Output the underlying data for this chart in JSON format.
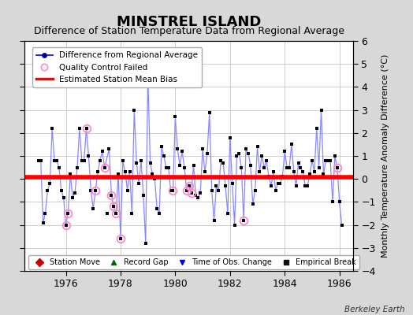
{
  "title": "MINSTREL ISLAND",
  "subtitle": "Difference of Station Temperature Data from Regional Average",
  "ylabel": "Monthly Temperature Anomaly Difference (°C)",
  "xlim": [
    1974.5,
    1986.5
  ],
  "ylim": [
    -4,
    6
  ],
  "yticks": [
    -4,
    -3,
    -2,
    -1,
    0,
    1,
    2,
    3,
    4,
    5,
    6
  ],
  "xticks": [
    1976,
    1978,
    1980,
    1982,
    1984,
    1986
  ],
  "bias_value": 0.08,
  "line_color": "#0000ff",
  "line_color_light": "#8888ff",
  "marker_color": "#000000",
  "qc_color": "#ff88cc",
  "bias_color": "#ff0000",
  "background_color": "#d8d8d8",
  "plot_bg_color": "#ffffff",
  "title_fontsize": 13,
  "subtitle_fontsize": 9,
  "tick_fontsize": 9,
  "ylabel_fontsize": 8,
  "watermark": "Berkeley Earth",
  "data": [
    [
      1975.0,
      0.8
    ],
    [
      1975.083,
      0.8
    ],
    [
      1975.167,
      -1.9
    ],
    [
      1975.25,
      -1.5
    ],
    [
      1975.333,
      -0.5
    ],
    [
      1975.417,
      -0.2
    ],
    [
      1975.5,
      2.2
    ],
    [
      1975.583,
      0.8
    ],
    [
      1975.667,
      0.8
    ],
    [
      1975.75,
      0.5
    ],
    [
      1975.833,
      -0.5
    ],
    [
      1975.917,
      -0.8
    ],
    [
      1976.0,
      -2.0
    ],
    [
      1976.083,
      -1.5
    ],
    [
      1976.167,
      0.2
    ],
    [
      1976.25,
      -0.8
    ],
    [
      1976.333,
      -0.6
    ],
    [
      1976.417,
      0.5
    ],
    [
      1976.5,
      2.2
    ],
    [
      1976.583,
      0.8
    ],
    [
      1976.667,
      0.8
    ],
    [
      1976.75,
      2.2
    ],
    [
      1976.833,
      1.0
    ],
    [
      1976.917,
      -0.5
    ],
    [
      1977.0,
      -1.3
    ],
    [
      1977.083,
      -0.5
    ],
    [
      1977.167,
      0.3
    ],
    [
      1977.25,
      0.8
    ],
    [
      1977.333,
      1.2
    ],
    [
      1977.417,
      0.5
    ],
    [
      1977.583,
      1.3
    ],
    [
      1977.667,
      -0.7
    ],
    [
      1977.75,
      -1.2
    ],
    [
      1977.833,
      -1.5
    ],
    [
      1977.917,
      0.2
    ],
    [
      1978.0,
      -2.6
    ],
    [
      1978.083,
      0.8
    ],
    [
      1978.167,
      0.3
    ],
    [
      1978.25,
      -0.5
    ],
    [
      1978.333,
      0.3
    ],
    [
      1978.417,
      -1.5
    ],
    [
      1978.5,
      3.0
    ],
    [
      1978.583,
      0.7
    ],
    [
      1978.667,
      -0.2
    ],
    [
      1978.75,
      0.8
    ],
    [
      1978.833,
      -0.7
    ],
    [
      1978.917,
      -2.8
    ],
    [
      1979.0,
      4.5
    ],
    [
      1979.083,
      0.7
    ],
    [
      1979.167,
      0.2
    ],
    [
      1979.25,
      0.0
    ],
    [
      1979.333,
      -1.3
    ],
    [
      1979.417,
      -1.5
    ],
    [
      1979.5,
      1.4
    ],
    [
      1979.583,
      1.0
    ],
    [
      1979.667,
      0.5
    ],
    [
      1979.75,
      0.5
    ],
    [
      1979.833,
      -0.5
    ],
    [
      1979.917,
      -0.5
    ],
    [
      1980.0,
      2.7
    ],
    [
      1980.083,
      1.3
    ],
    [
      1980.167,
      0.6
    ],
    [
      1980.25,
      1.2
    ],
    [
      1980.333,
      0.5
    ],
    [
      1980.417,
      -0.5
    ],
    [
      1980.5,
      -0.3
    ],
    [
      1980.583,
      -0.6
    ],
    [
      1980.667,
      0.6
    ],
    [
      1980.75,
      -0.7
    ],
    [
      1980.833,
      -0.8
    ],
    [
      1980.917,
      -0.6
    ],
    [
      1981.0,
      1.3
    ],
    [
      1981.083,
      0.3
    ],
    [
      1981.167,
      1.1
    ],
    [
      1981.25,
      2.9
    ],
    [
      1981.333,
      -0.5
    ],
    [
      1981.417,
      -1.8
    ],
    [
      1981.5,
      -0.3
    ],
    [
      1981.583,
      -0.5
    ],
    [
      1981.667,
      0.8
    ],
    [
      1981.75,
      0.7
    ],
    [
      1981.833,
      -0.3
    ],
    [
      1981.917,
      -1.5
    ],
    [
      1982.0,
      1.8
    ],
    [
      1982.083,
      -0.2
    ],
    [
      1982.167,
      -2.0
    ],
    [
      1982.25,
      1.0
    ],
    [
      1982.333,
      1.1
    ],
    [
      1982.417,
      0.5
    ],
    [
      1982.5,
      -1.8
    ],
    [
      1982.583,
      1.3
    ],
    [
      1982.667,
      1.1
    ],
    [
      1982.75,
      0.6
    ],
    [
      1982.833,
      -1.1
    ],
    [
      1982.917,
      -0.5
    ],
    [
      1983.0,
      1.4
    ],
    [
      1983.083,
      0.3
    ],
    [
      1983.167,
      1.0
    ],
    [
      1983.25,
      0.5
    ],
    [
      1983.333,
      0.8
    ],
    [
      1983.417,
      0.1
    ],
    [
      1983.5,
      -0.3
    ],
    [
      1983.583,
      0.3
    ],
    [
      1983.667,
      -0.5
    ],
    [
      1983.75,
      -0.2
    ],
    [
      1983.833,
      -0.2
    ],
    [
      1983.917,
      0.1
    ],
    [
      1984.0,
      1.2
    ],
    [
      1984.083,
      0.5
    ],
    [
      1984.167,
      0.5
    ],
    [
      1984.25,
      1.5
    ],
    [
      1984.333,
      0.3
    ],
    [
      1984.417,
      -0.3
    ],
    [
      1984.5,
      0.7
    ],
    [
      1984.583,
      0.5
    ],
    [
      1984.667,
      0.3
    ],
    [
      1984.75,
      -0.3
    ],
    [
      1984.833,
      -0.3
    ],
    [
      1984.917,
      0.2
    ],
    [
      1985.0,
      0.8
    ],
    [
      1985.083,
      0.3
    ],
    [
      1985.167,
      2.2
    ],
    [
      1985.25,
      0.5
    ],
    [
      1985.333,
      3.0
    ],
    [
      1985.417,
      0.2
    ],
    [
      1985.5,
      0.8
    ],
    [
      1985.583,
      0.8
    ],
    [
      1985.667,
      0.8
    ],
    [
      1985.75,
      -1.0
    ],
    [
      1985.833,
      1.0
    ],
    [
      1985.917,
      0.5
    ],
    [
      1986.0,
      -1.0
    ],
    [
      1986.083,
      -2.0
    ]
  ],
  "isolated_point": [
    1977.5,
    -1.5
  ],
  "qc_failed_times": [
    1976.0,
    1976.083,
    1976.75,
    1977.667,
    1977.75,
    1977.833,
    1977.083,
    1977.417,
    1978.0,
    1979.917,
    1980.417,
    1980.5,
    1980.583,
    1982.5,
    1985.917
  ]
}
